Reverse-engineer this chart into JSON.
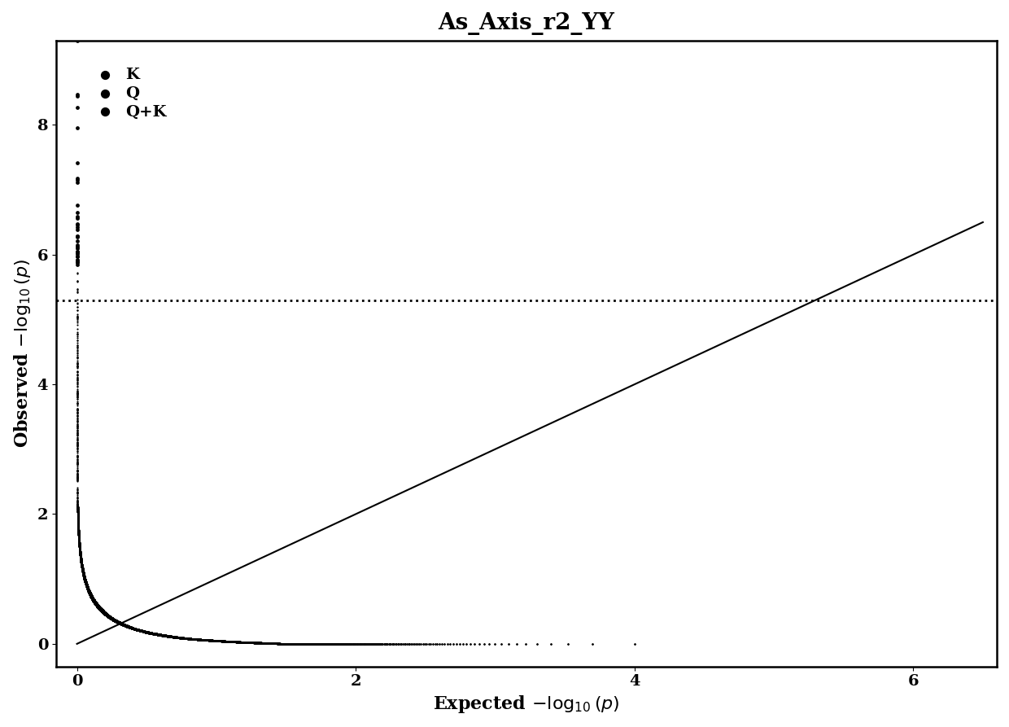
{
  "title": "As_Axis_r2_YY",
  "xlim": [
    -0.15,
    6.6
  ],
  "ylim": [
    -0.35,
    9.3
  ],
  "xticks": [
    0,
    2,
    4,
    6
  ],
  "yticks": [
    0,
    2,
    4,
    6,
    8
  ],
  "threshold_y": 5.3,
  "dot_color": "#000000",
  "background_color": "#ffffff",
  "seed": 42,
  "title_fontsize": 20,
  "label_fontsize": 16,
  "tick_fontsize": 14,
  "legend_labels": [
    "K",
    "Q",
    "Q+K"
  ]
}
